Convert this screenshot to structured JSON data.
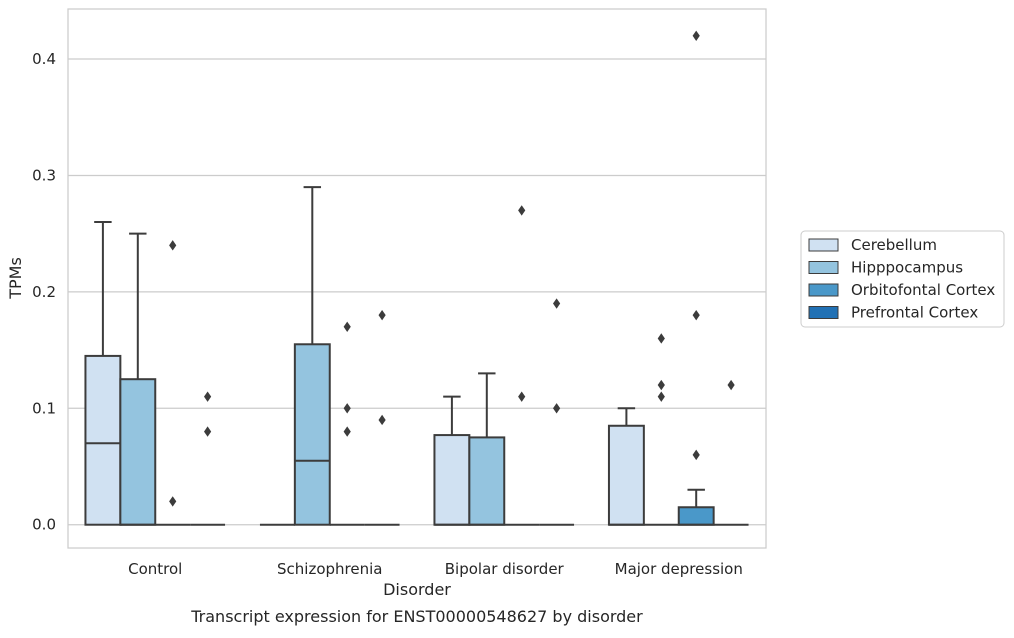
{
  "caption": "Transcript expression for ENST00000548627 by disorder",
  "chart_data": {
    "type": "box",
    "title": "",
    "xlabel": "Disorder",
    "ylabel": "TPMs",
    "ylim": [
      -0.02,
      0.443
    ],
    "yticks": [
      0.0,
      0.1,
      0.2,
      0.3,
      0.4
    ],
    "ytick_labels": [
      "0.0",
      "0.1",
      "0.2",
      "0.3",
      "0.4"
    ],
    "grid": "horizontal",
    "legend_position": "right",
    "categories": [
      "Control",
      "Schizophrenia",
      "Bipolar disorder",
      "Major depression"
    ],
    "series": [
      {
        "name": "Cerebellum",
        "color": "#d0e1f2",
        "boxes": [
          {
            "category": "Control",
            "whislo": 0.0,
            "q1": 0.0,
            "median": 0.07,
            "q3": 0.145,
            "whishi": 0.26,
            "fliers": []
          },
          {
            "category": "Schizophrenia",
            "whislo": 0.0,
            "q1": 0.0,
            "median": 0.0,
            "q3": 0.0,
            "whishi": 0.0,
            "fliers": []
          },
          {
            "category": "Bipolar disorder",
            "whislo": 0.0,
            "q1": 0.0,
            "median": 0.0,
            "q3": 0.077,
            "whishi": 0.11,
            "fliers": []
          },
          {
            "category": "Major depression",
            "whislo": 0.0,
            "q1": 0.0,
            "median": 0.0,
            "q3": 0.085,
            "whishi": 0.1,
            "fliers": []
          }
        ]
      },
      {
        "name": "Hipppocampus",
        "color": "#94c4df",
        "boxes": [
          {
            "category": "Control",
            "whislo": 0.0,
            "q1": 0.0,
            "median": 0.0,
            "q3": 0.125,
            "whishi": 0.25,
            "fliers": []
          },
          {
            "category": "Schizophrenia",
            "whislo": 0.0,
            "q1": 0.0,
            "median": 0.055,
            "q3": 0.155,
            "whishi": 0.29,
            "fliers": []
          },
          {
            "category": "Bipolar disorder",
            "whislo": 0.0,
            "q1": 0.0,
            "median": 0.0,
            "q3": 0.075,
            "whishi": 0.13,
            "fliers": []
          },
          {
            "category": "Major depression",
            "whislo": 0.0,
            "q1": 0.0,
            "median": 0.0,
            "q3": 0.0,
            "whishi": 0.0,
            "fliers": [
              0.11,
              0.12,
              0.16
            ]
          }
        ]
      },
      {
        "name": "Orbitofontal Cortex",
        "color": "#4a98c9",
        "boxes": [
          {
            "category": "Control",
            "whislo": 0.0,
            "q1": 0.0,
            "median": 0.0,
            "q3": 0.0,
            "whishi": 0.0,
            "fliers": [
              0.24,
              0.02
            ]
          },
          {
            "category": "Schizophrenia",
            "whislo": 0.0,
            "q1": 0.0,
            "median": 0.0,
            "q3": 0.0,
            "whishi": 0.0,
            "fliers": [
              0.17,
              0.1,
              0.08
            ]
          },
          {
            "category": "Bipolar disorder",
            "whislo": 0.0,
            "q1": 0.0,
            "median": 0.0,
            "q3": 0.0,
            "whishi": 0.0,
            "fliers": [
              0.27,
              0.11
            ]
          },
          {
            "category": "Major depression",
            "whislo": 0.0,
            "q1": 0.0,
            "median": 0.0,
            "q3": 0.015,
            "whishi": 0.03,
            "fliers": [
              0.42,
              0.18,
              0.06
            ]
          }
        ]
      },
      {
        "name": "Prefrontal Cortex",
        "color": "#2171b5",
        "boxes": [
          {
            "category": "Control",
            "whislo": 0.0,
            "q1": 0.0,
            "median": 0.0,
            "q3": 0.0,
            "whishi": 0.0,
            "fliers": [
              0.11,
              0.08
            ]
          },
          {
            "category": "Schizophrenia",
            "whislo": 0.0,
            "q1": 0.0,
            "median": 0.0,
            "q3": 0.0,
            "whishi": 0.0,
            "fliers": [
              0.18,
              0.09
            ]
          },
          {
            "category": "Bipolar disorder",
            "whislo": 0.0,
            "q1": 0.0,
            "median": 0.0,
            "q3": 0.0,
            "whishi": 0.0,
            "fliers": [
              0.19,
              0.1
            ]
          },
          {
            "category": "Major depression",
            "whislo": 0.0,
            "q1": 0.0,
            "median": 0.0,
            "q3": 0.0,
            "whishi": 0.0,
            "fliers": [
              0.12
            ]
          }
        ]
      }
    ]
  }
}
